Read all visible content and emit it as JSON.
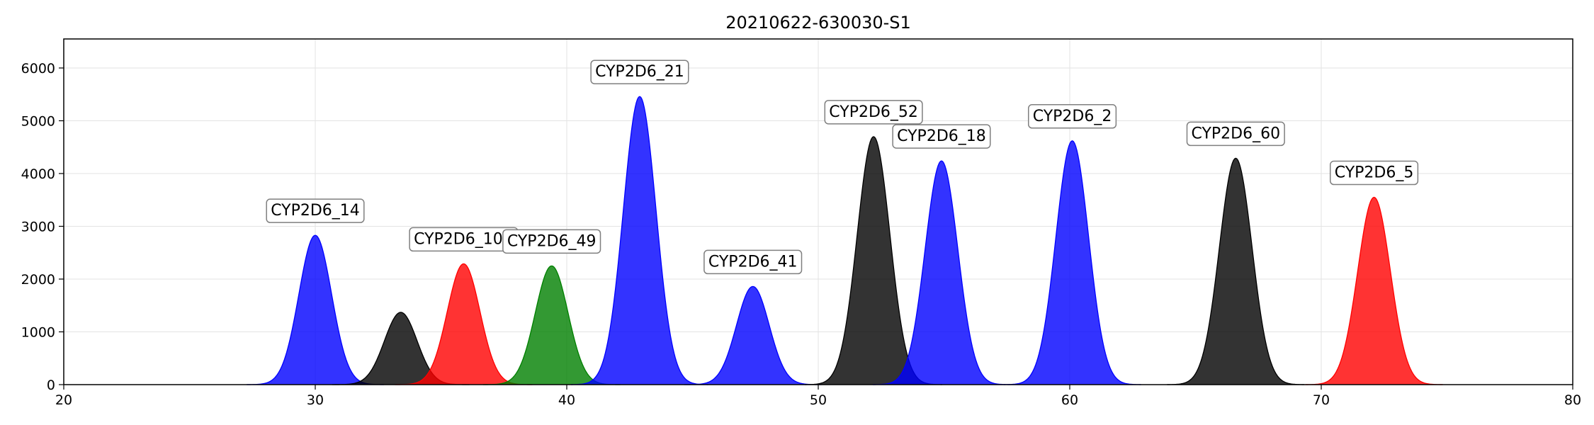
{
  "chart_data": {
    "type": "area",
    "title": "20210622-630030-S1",
    "xlabel": "",
    "ylabel": "",
    "xlim": [
      20,
      80
    ],
    "ylim": [
      0,
      6550
    ],
    "x_ticks": [
      20,
      30,
      40,
      50,
      60,
      70,
      80
    ],
    "y_ticks": [
      0,
      1000,
      2000,
      3000,
      4000,
      5000,
      6000
    ],
    "grid": true,
    "peaks": [
      {
        "label": "CYP2D6_14",
        "center": 30.0,
        "height": 2830,
        "sigma": 0.65,
        "color": "#0000ff"
      },
      {
        "label": "",
        "center": 33.4,
        "height": 1370,
        "sigma": 0.65,
        "color": "#000000"
      },
      {
        "label": "CYP2D6_10B",
        "center": 35.9,
        "height": 2290,
        "sigma": 0.65,
        "color": "#ff0000"
      },
      {
        "label": "CYP2D6_49",
        "center": 39.4,
        "height": 2250,
        "sigma": 0.65,
        "color": "#008000"
      },
      {
        "label": "CYP2D6_21",
        "center": 42.9,
        "height": 5460,
        "sigma": 0.65,
        "color": "#0000ff"
      },
      {
        "label": "CYP2D6_41",
        "center": 47.4,
        "height": 1860,
        "sigma": 0.65,
        "color": "#0000ff"
      },
      {
        "label": "CYP2D6_52",
        "center": 52.2,
        "height": 4700,
        "sigma": 0.65,
        "color": "#000000"
      },
      {
        "label": "CYP2D6_18",
        "center": 54.9,
        "height": 4240,
        "sigma": 0.65,
        "color": "#0000ff"
      },
      {
        "label": "CYP2D6_2",
        "center": 60.1,
        "height": 4620,
        "sigma": 0.65,
        "color": "#0000ff"
      },
      {
        "label": "CYP2D6_60",
        "center": 66.6,
        "height": 4290,
        "sigma": 0.65,
        "color": "#000000"
      },
      {
        "label": "CYP2D6_5",
        "center": 72.1,
        "height": 3550,
        "sigma": 0.65,
        "color": "#ff0000"
      }
    ]
  }
}
